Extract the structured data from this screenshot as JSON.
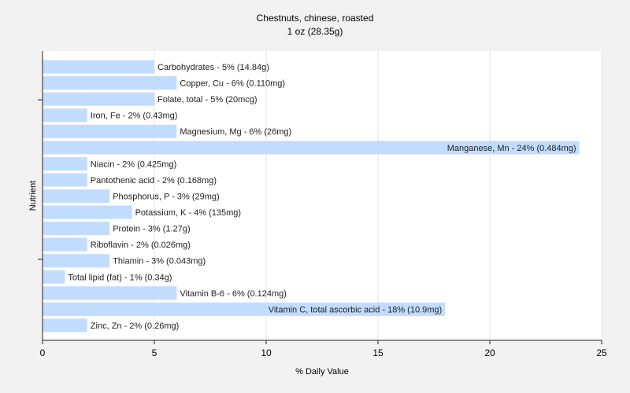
{
  "chart_data": {
    "type": "bar",
    "orientation": "horizontal",
    "title": "Chestnuts, chinese, roasted",
    "subtitle": "1 oz (28.35g)",
    "xlabel": "% Daily Value",
    "ylabel": "Nutrient",
    "xlim": [
      0,
      25
    ],
    "xticks": [
      0,
      5,
      10,
      15,
      20,
      25
    ],
    "grid": true,
    "bar_color": "#c2dcff",
    "categories": [
      "Carbohydrates",
      "Copper, Cu",
      "Folate, total",
      "Iron, Fe",
      "Magnesium, Mg",
      "Manganese, Mn",
      "Niacin",
      "Pantothenic acid",
      "Phosphorus, P",
      "Potassium, K",
      "Protein",
      "Riboflavin",
      "Thiamin",
      "Total lipid (fat)",
      "Vitamin B-6",
      "Vitamin C, total ascorbic acid",
      "Zinc, Zn"
    ],
    "values": [
      5,
      6,
      5,
      2,
      6,
      24,
      2,
      2,
      3,
      4,
      3,
      2,
      3,
      1,
      6,
      18,
      2
    ],
    "labels": [
      "Carbohydrates - 5% (14.84g)",
      "Copper, Cu - 6% (0.110mg)",
      "Folate, total - 5% (20mcg)",
      "Iron, Fe - 2% (0.43mg)",
      "Magnesium, Mg - 6% (26mg)",
      "Manganese, Mn - 24% (0.484mg)",
      "Niacin - 2% (0.425mg)",
      "Pantothenic acid - 2% (0.168mg)",
      "Phosphorus, P - 3% (29mg)",
      "Potassium, K - 4% (135mg)",
      "Protein - 3% (1.27g)",
      "Riboflavin - 2% (0.026mg)",
      "Thiamin - 3% (0.043mg)",
      "Total lipid (fat) - 1% (0.34g)",
      "Vitamin B-6 - 6% (0.124mg)",
      "Vitamin C, total ascorbic acid - 18% (10.9mg)",
      "Zinc, Zn - 2% (0.26mg)"
    ]
  }
}
